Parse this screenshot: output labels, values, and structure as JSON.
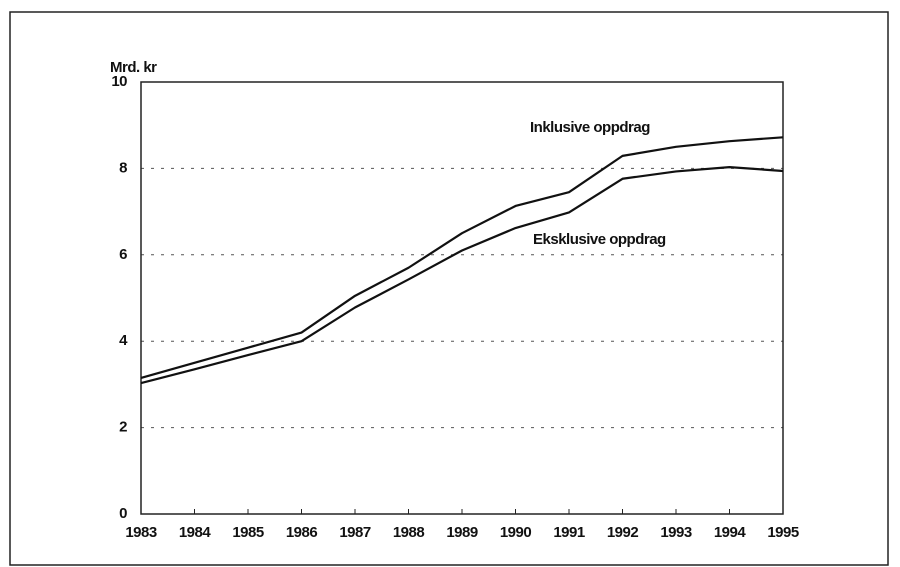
{
  "chart_data": {
    "type": "line",
    "y_label": "Mrd. kr",
    "x": [
      1983,
      1984,
      1985,
      1986,
      1987,
      1988,
      1989,
      1990,
      1991,
      1992,
      1993,
      1994,
      1995
    ],
    "series": [
      {
        "name": "Inklusive oppdrag",
        "color": "#111111",
        "values": [
          3.15,
          3.5,
          3.85,
          4.2,
          5.05,
          5.7,
          6.5,
          7.13,
          7.45,
          8.29,
          8.5,
          8.63,
          8.72
        ]
      },
      {
        "name": "Eksklusive oppdrag",
        "color": "#111111",
        "values": [
          3.03,
          3.35,
          3.68,
          4.0,
          4.78,
          5.43,
          6.1,
          6.62,
          6.98,
          7.76,
          7.93,
          8.03,
          7.94
        ]
      }
    ],
    "xlim": [
      1983,
      1995
    ],
    "xticks": [
      1983,
      1984,
      1985,
      1986,
      1987,
      1988,
      1989,
      1990,
      1991,
      1992,
      1993,
      1994,
      1995
    ],
    "ylim": [
      0,
      10
    ],
    "yticks": [
      0,
      2,
      4,
      6,
      8,
      10
    ],
    "grid": "dashed"
  }
}
